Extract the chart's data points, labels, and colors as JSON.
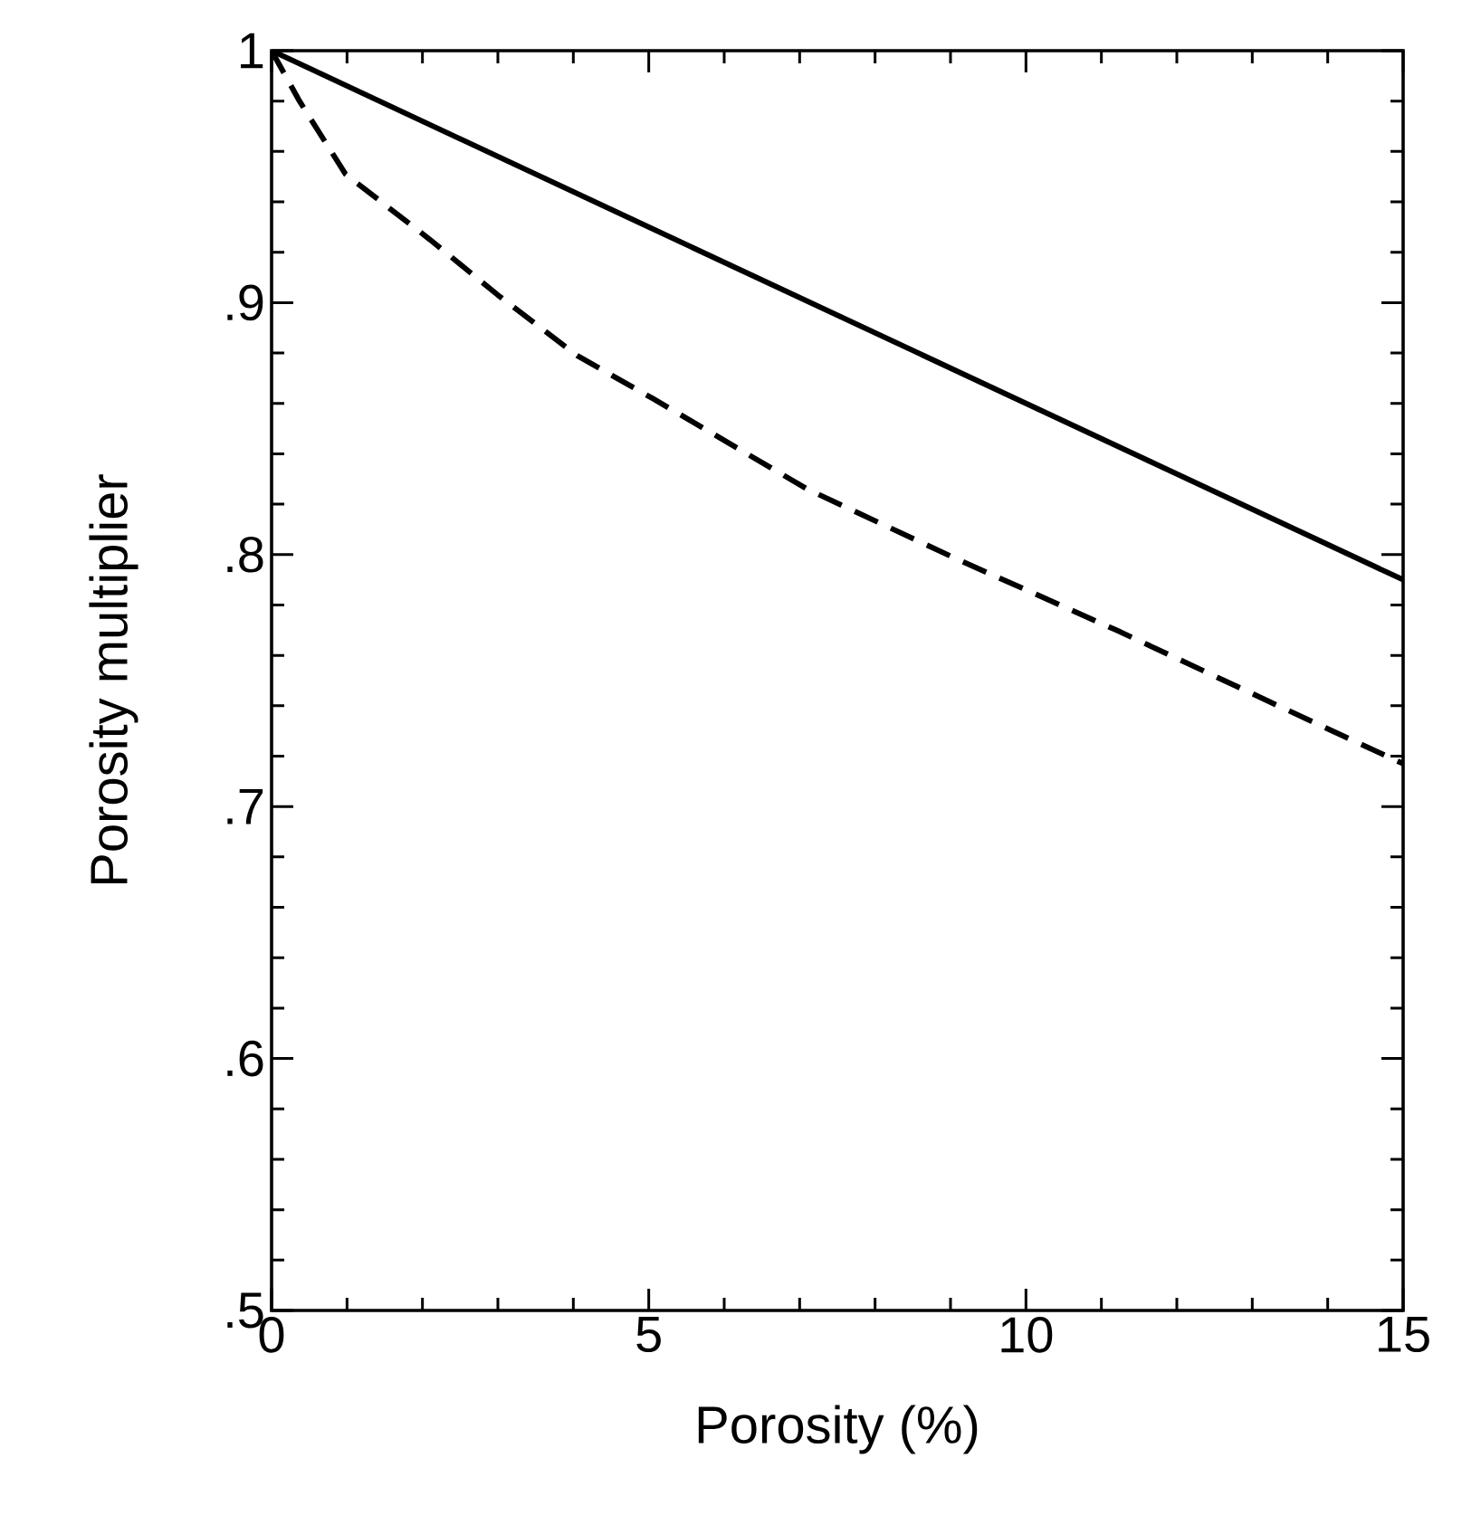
{
  "chart_data": {
    "type": "line",
    "xlabel": "Porosity (%)",
    "ylabel": "Porosity multiplier",
    "xlim": [
      0,
      15
    ],
    "ylim": [
      0.5,
      1
    ],
    "xticks": [
      0,
      5,
      10,
      15
    ],
    "yticks": [
      {
        "value": 0.5,
        "label": ".5"
      },
      {
        "value": 0.6,
        "label": ".6"
      },
      {
        "value": 0.7,
        "label": ".7"
      },
      {
        "value": 0.8,
        "label": ".8"
      },
      {
        "value": 0.9,
        "label": ".9"
      },
      1
    ],
    "grid": false,
    "marker": "none",
    "series": [
      {
        "color": "#000000",
        "line_style": "solid",
        "x": [
          0,
          15
        ],
        "values": [
          1,
          0.79
        ]
      },
      {
        "color": "#000000",
        "line_style": "dashed",
        "x": [
          0,
          0.37,
          0.98,
          2.1,
          3.0,
          4.05,
          5.05,
          7.1,
          9.1,
          11.2,
          13.2,
          15
        ],
        "values": [
          1,
          0.98,
          0.951,
          0.925,
          0.903,
          0.879,
          0.862,
          0.826,
          0.798,
          0.77,
          0.742,
          0.717
        ]
      }
    ]
  }
}
